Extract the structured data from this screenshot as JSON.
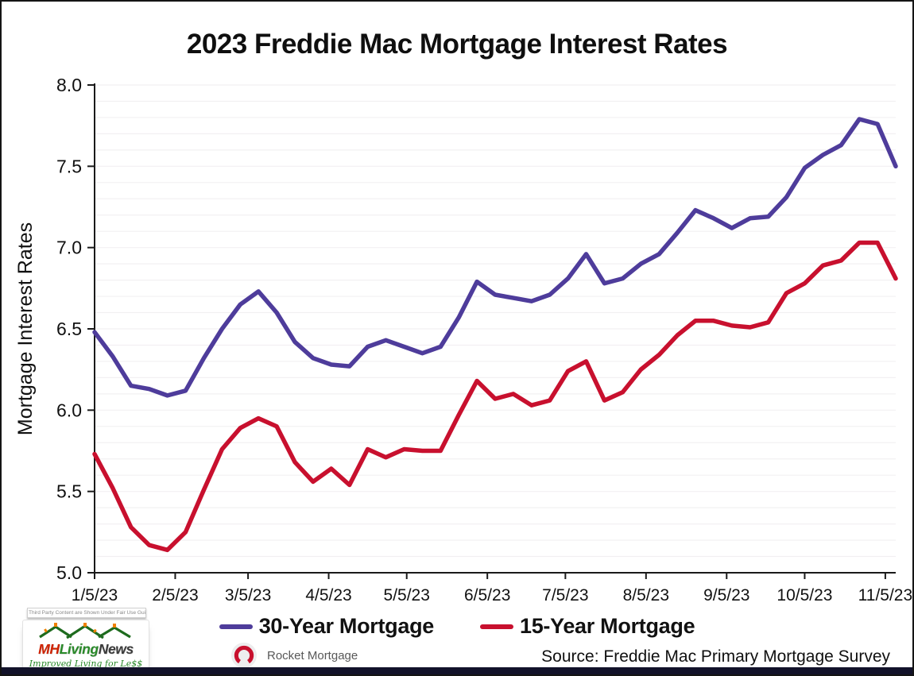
{
  "page": {
    "title": "2023 Freddie Mac Mortgage Interest Rates"
  },
  "chart_data": {
    "type": "line",
    "title": "2023 Freddie Mac Mortgage Interest Rates",
    "xlabel": "",
    "ylabel": "Mortgage Interest Rates",
    "ylim": [
      5.0,
      8.0
    ],
    "y_tick_labels": [
      "5.0",
      "5.5",
      "6.0",
      "6.5",
      "7.0",
      "7.5",
      "8.0"
    ],
    "y_minor_grid_step": 0.1,
    "grid": "horizontal-minor-on",
    "legend_position": "bottom",
    "x_tick_labels": [
      "1/5/23",
      "2/5/23",
      "3/5/23",
      "4/5/23",
      "5/5/23",
      "6/5/23",
      "7/5/23",
      "8/5/23",
      "9/5/23",
      "10/5/23",
      "11/5/23"
    ],
    "x": [
      "1/5/23",
      "1/12/23",
      "1/19/23",
      "1/26/23",
      "2/2/23",
      "2/9/23",
      "2/16/23",
      "2/23/23",
      "3/2/23",
      "3/9/23",
      "3/16/23",
      "3/23/23",
      "3/30/23",
      "4/6/23",
      "4/13/23",
      "4/20/23",
      "4/27/23",
      "5/4/23",
      "5/11/23",
      "5/18/23",
      "5/25/23",
      "6/1/23",
      "6/8/23",
      "6/15/23",
      "6/22/23",
      "6/29/23",
      "7/6/23",
      "7/13/23",
      "7/20/23",
      "7/27/23",
      "8/3/23",
      "8/10/23",
      "8/17/23",
      "8/24/23",
      "8/31/23",
      "9/7/23",
      "9/14/23",
      "9/21/23",
      "9/28/23",
      "10/5/23",
      "10/12/23",
      "10/19/23",
      "10/26/23",
      "11/2/23",
      "11/9/23"
    ],
    "series": [
      {
        "name": "30-Year Mortgage",
        "color": "#4e3c9b",
        "values": [
          6.48,
          6.33,
          6.15,
          6.13,
          6.09,
          6.12,
          6.32,
          6.5,
          6.65,
          6.73,
          6.6,
          6.42,
          6.32,
          6.28,
          6.27,
          6.39,
          6.43,
          6.39,
          6.35,
          6.39,
          6.57,
          6.79,
          6.71,
          6.69,
          6.67,
          6.71,
          6.81,
          6.96,
          6.78,
          6.81,
          6.9,
          6.96,
          7.09,
          7.23,
          7.18,
          7.12,
          7.18,
          7.19,
          7.31,
          7.49,
          7.57,
          7.63,
          7.79,
          7.76,
          7.5
        ]
      },
      {
        "name": "15-Year Mortgage",
        "color": "#c8102e",
        "values": [
          5.73,
          5.52,
          5.28,
          5.17,
          5.14,
          5.25,
          5.51,
          5.76,
          5.89,
          5.95,
          5.9,
          5.68,
          5.56,
          5.64,
          5.54,
          5.76,
          5.71,
          5.76,
          5.75,
          5.75,
          5.97,
          6.18,
          6.07,
          6.1,
          6.03,
          6.06,
          6.24,
          6.3,
          6.06,
          6.11,
          6.25,
          6.34,
          6.46,
          6.55,
          6.55,
          6.52,
          6.51,
          6.54,
          6.72,
          6.78,
          6.89,
          6.92,
          7.03,
          7.03,
          6.81
        ]
      }
    ]
  },
  "legend": {
    "items": [
      {
        "label": "30-Year Mortgage",
        "color": "#4e3c9b"
      },
      {
        "label": "15-Year Mortgage",
        "color": "#c8102e"
      }
    ]
  },
  "footer": {
    "rocket_label": "Rocket Mortgage",
    "source": "Source: Freddie Mac Primary Mortgage Survey"
  },
  "watermark": {
    "disclaimer": "Third Party Content are Shown Under Fair Use Guidelines.",
    "brand_mh": "MH",
    "brand_living": "Living",
    "brand_news": "News",
    "tagline": "Improved Living for Le$$"
  },
  "colors": {
    "grid": "#f2f0f2",
    "axis": "#1a1a1a",
    "tick_text": "#111111"
  }
}
